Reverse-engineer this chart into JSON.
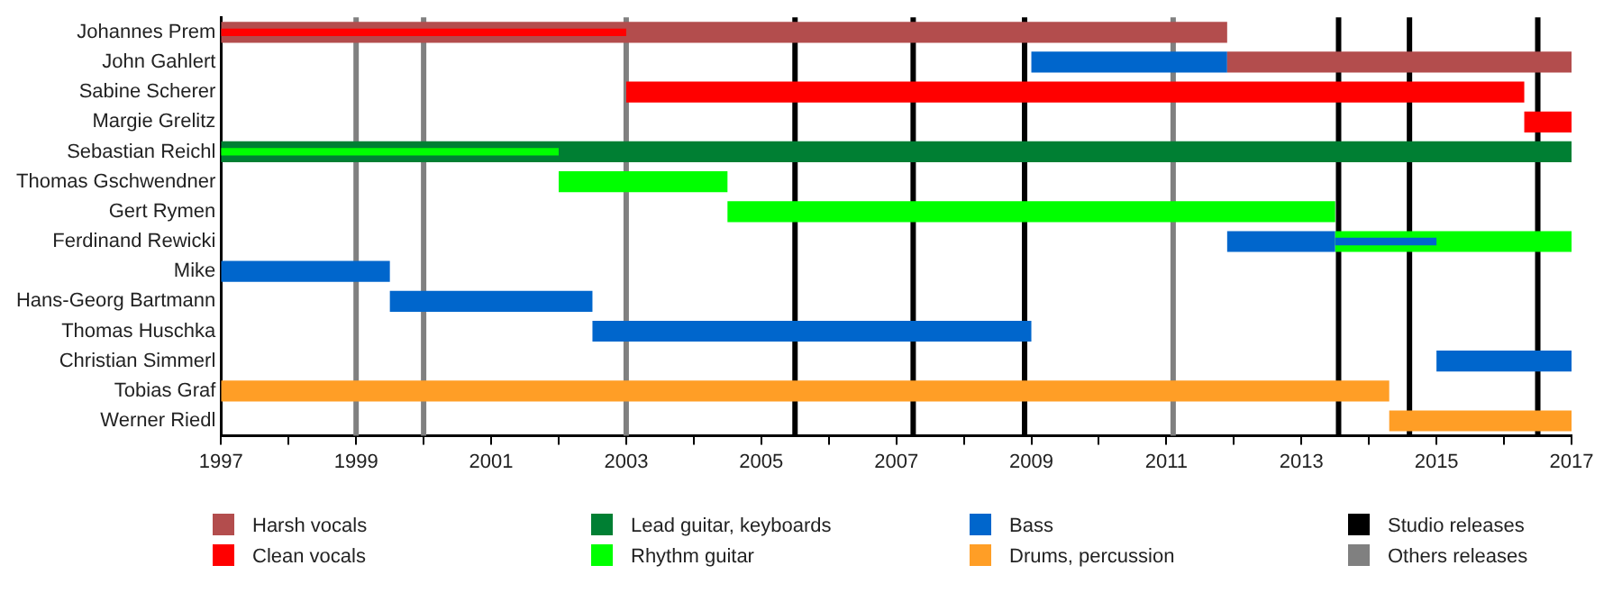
{
  "chart_data": {
    "type": "bar",
    "orientation": "horizontal",
    "categories": [
      "Johannes Prem",
      "John Gahlert",
      "Sabine Scherer",
      "Margie Grelitz",
      "Sebastian Reichl",
      "Thomas Gschwendner",
      "Gert Rymen",
      "Ferdinand Rewicki",
      "Mike",
      "Hans-Georg Bartmann",
      "Thomas Huschka",
      "Christian Simmerl",
      "Tobias Graf",
      "Werner Riedl"
    ],
    "series": [
      {
        "name": "Harsh vocals",
        "color": "#b34d4d",
        "base": [
          1997,
          2011.9,
          null,
          null,
          null,
          null,
          null,
          null,
          null,
          null,
          null,
          null,
          null,
          null
        ],
        "values": [
          14.9,
          5.1,
          null,
          null,
          null,
          null,
          null,
          null,
          null,
          null,
          null,
          null,
          null,
          null
        ]
      },
      {
        "name": "Clean vocals",
        "color": "#ff0000",
        "base": [
          null,
          null,
          2003,
          2016.3,
          null,
          null,
          null,
          null,
          null,
          null,
          null,
          null,
          null,
          null
        ],
        "values": [
          null,
          null,
          13.3,
          0.7,
          null,
          null,
          null,
          null,
          null,
          null,
          null,
          null,
          null,
          null
        ]
      },
      {
        "name": "Lead guitar, keyboards",
        "color": "#007f33",
        "base": [
          null,
          null,
          null,
          null,
          1997,
          null,
          null,
          null,
          null,
          null,
          null,
          null,
          null,
          null
        ],
        "values": [
          null,
          null,
          null,
          null,
          20,
          null,
          null,
          null,
          null,
          null,
          null,
          null,
          null,
          null
        ]
      },
      {
        "name": "Rhythm guitar",
        "color": "#00ff00",
        "base": [
          null,
          null,
          null,
          null,
          null,
          2002,
          2004.5,
          2013.5,
          null,
          null,
          null,
          null,
          null,
          null
        ],
        "values": [
          null,
          null,
          null,
          null,
          null,
          2.5,
          9,
          3.5,
          null,
          null,
          null,
          null,
          null,
          null
        ]
      },
      {
        "name": "Bass",
        "color": "#0066cc",
        "base": [
          null,
          2009,
          null,
          null,
          null,
          null,
          null,
          2011.9,
          1997,
          1999.5,
          2002.5,
          2015,
          null,
          null
        ],
        "values": [
          null,
          2.9,
          null,
          null,
          null,
          null,
          null,
          1.6,
          2.5,
          3,
          6.5,
          2,
          null,
          null
        ]
      },
      {
        "name": "Drums, percussion",
        "color": "#ff9e26",
        "base": [
          null,
          null,
          null,
          null,
          null,
          null,
          null,
          null,
          null,
          null,
          null,
          null,
          1997,
          2014.3
        ],
        "values": [
          null,
          null,
          null,
          null,
          null,
          null,
          null,
          null,
          null,
          null,
          null,
          null,
          17.3,
          2.7
        ]
      },
      {
        "colors": [
          "#ff0000",
          null,
          null,
          null,
          "#00ff00",
          null,
          null,
          "#0066cc",
          null,
          null,
          null,
          null,
          null,
          null
        ],
        "base": [
          1997,
          null,
          null,
          null,
          1997,
          null,
          null,
          2013.5,
          null,
          null,
          null,
          null,
          null,
          null
        ],
        "values": [
          6,
          null,
          null,
          null,
          5,
          null,
          null,
          1.5,
          null,
          null,
          null,
          null,
          null,
          null
        ]
      }
    ],
    "xlim": [
      1997,
      2017
    ],
    "xticks": [
      1997,
      {
        "value": 1998,
        "label": null
      },
      1999,
      {
        "value": 2000,
        "label": null
      },
      2001,
      {
        "value": 2002,
        "label": null
      },
      2003,
      {
        "value": 2004,
        "label": null
      },
      2005,
      {
        "value": 2006,
        "label": null
      },
      2007,
      {
        "value": 2008,
        "label": null
      },
      2009,
      {
        "value": 2010,
        "label": null
      },
      2011,
      {
        "value": 2012,
        "label": null
      },
      2013,
      {
        "value": 2014,
        "label": null
      },
      2015,
      {
        "value": 2016,
        "label": null
      },
      2017
    ],
    "ref_lines": [
      {
        "axis": "x",
        "value": 2005.5,
        "label": "Studio releases",
        "color": "#000000"
      },
      {
        "axis": "x",
        "value": 2007.25,
        "color": "#000000"
      },
      {
        "axis": "x",
        "value": 2008.9,
        "color": "#000000"
      },
      {
        "axis": "x",
        "value": 2013.55,
        "color": "#000000"
      },
      {
        "axis": "x",
        "value": 2014.6,
        "color": "#000000"
      },
      {
        "axis": "x",
        "value": 2016.5,
        "color": "#000000"
      },
      {
        "axis": "x",
        "value": 1999,
        "label": "Others releases",
        "color": "#808080"
      },
      {
        "axis": "x",
        "value": 2000,
        "color": "#808080"
      },
      {
        "axis": "x",
        "value": 2003,
        "color": "#808080"
      },
      {
        "axis": "x",
        "value": 2011.1,
        "color": "#808080"
      }
    ],
    "grid": false,
    "legend": "bottom"
  }
}
